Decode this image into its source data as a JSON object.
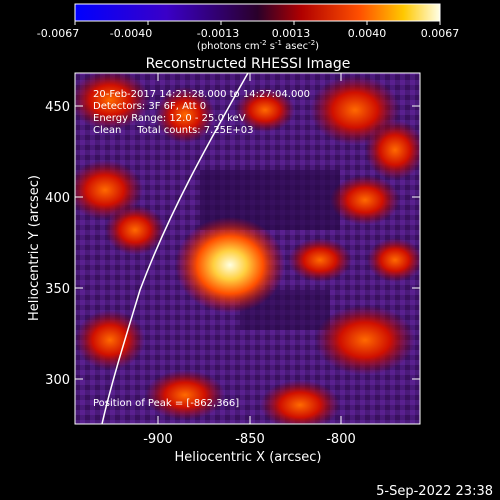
{
  "colorbar": {
    "ticks": [
      "-0.0067",
      "-0.0040",
      "-0.0013",
      "0.0013",
      "0.0040",
      "0.0067"
    ],
    "units_prefix": "(photons cm",
    "units_exp1": "-2",
    "units_mid1": " s",
    "units_exp2": "-1",
    "units_mid2": " asec",
    "units_exp3": "-2",
    "units_suffix": ")"
  },
  "title": "Reconstructed RHESSI Image",
  "annotations": {
    "time_range": "20-Feb-2017 14:21:28.000 to 14:27:04.000",
    "detectors": "Detectors: 3F 6F, Att 0",
    "energy": "Energy Range: 12.0 - 25.0 keV",
    "clean": "Clean     Total counts: 7.25E+03",
    "peak": "Position of Peak = [-862,366]"
  },
  "axes": {
    "xlabel": "Heliocentric X (arcsec)",
    "ylabel": "Heliocentric Y (arcsec)",
    "xticks": [
      "-900",
      "-850",
      "-800"
    ],
    "yticks": [
      "450",
      "400",
      "350",
      "300"
    ]
  },
  "footer": {
    "date": "5-Sep-2022 23:38"
  },
  "image": {
    "peak_x": -862,
    "peak_y": 366,
    "colormap": "blue-purple-red-yellow-white"
  }
}
